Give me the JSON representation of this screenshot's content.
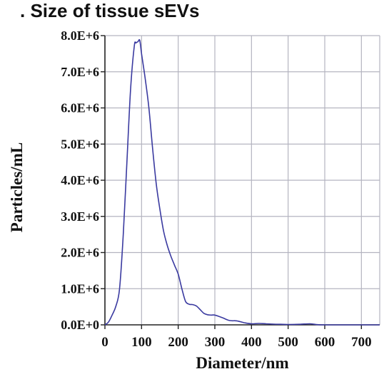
{
  "title": ". Size of tissue sEVs",
  "chart_data": {
    "type": "line",
    "title": ". Size of tissue sEVs",
    "xlabel": "Diameter/nm",
    "ylabel": "Particles/mL",
    "xlim": [
      0,
      750
    ],
    "ylim": [
      0,
      8000000
    ],
    "xticks": [
      0,
      100,
      200,
      300,
      400,
      500,
      600,
      700
    ],
    "xtick_labels": [
      "0",
      "100",
      "200",
      "300",
      "400",
      "500",
      "600",
      "700"
    ],
    "yticks": [
      0,
      1000000,
      2000000,
      3000000,
      4000000,
      5000000,
      6000000,
      7000000,
      8000000
    ],
    "ytick_labels": [
      "0.0E+0",
      "1.0E+6",
      "2.0E+6",
      "3.0E+6",
      "4.0E+6",
      "5.0E+6",
      "6.0E+6",
      "7.0E+6",
      "8.0E+6"
    ],
    "grid": true,
    "line_color": "#3a3aa0",
    "series": [
      {
        "x": [
          0,
          10,
          20,
          30,
          40,
          50,
          60,
          70,
          80,
          85,
          90,
          95,
          100,
          110,
          120,
          130,
          140,
          150,
          160,
          170,
          180,
          190,
          200,
          210,
          220,
          230,
          240,
          250,
          260,
          270,
          280,
          290,
          300,
          320,
          340,
          360,
          380,
          400,
          420,
          440,
          460,
          480,
          500,
          530,
          560,
          580,
          600,
          650,
          700,
          750
        ],
        "y": [
          0,
          80000,
          280000,
          520000,
          1000000,
          2500000,
          4500000,
          6500000,
          7700000,
          7800000,
          7830000,
          7870000,
          7500000,
          6800000,
          6000000,
          4900000,
          3900000,
          3200000,
          2600000,
          2200000,
          1900000,
          1650000,
          1400000,
          1000000,
          650000,
          570000,
          560000,
          520000,
          420000,
          320000,
          280000,
          270000,
          270000,
          200000,
          120000,
          110000,
          60000,
          30000,
          40000,
          30000,
          20000,
          15000,
          10000,
          15000,
          30000,
          5000,
          0,
          0,
          0,
          0
        ]
      }
    ]
  }
}
